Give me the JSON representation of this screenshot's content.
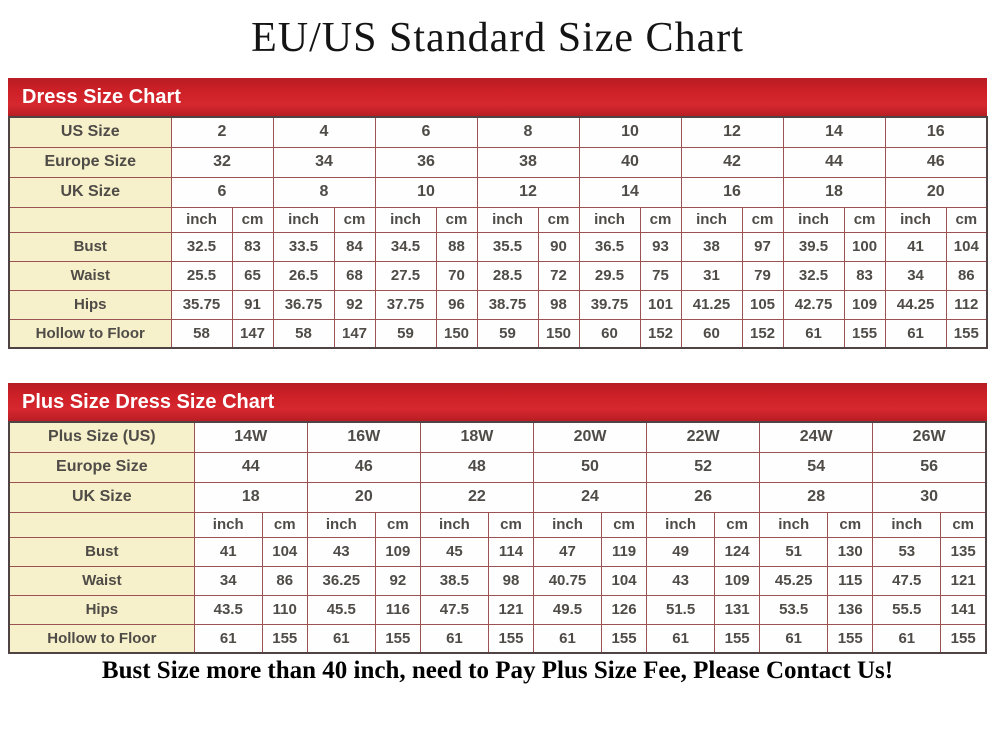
{
  "title": "EU/US Standard Size Chart",
  "footer_note": "Bust Size more than 40 inch, need to Pay Plus Size Fee, Please Contact Us!",
  "units": {
    "inch": "inch",
    "cm": "cm"
  },
  "colors": {
    "header_red": "#ce2027",
    "label_cell_cream": "#f6f1ca",
    "grid_border_maroon": "#9b5252",
    "table_text": "#4f4b47"
  },
  "standard_chart": {
    "header": "Dress Size Chart",
    "size_rows": [
      {
        "label": "US Size",
        "values": [
          "2",
          "4",
          "6",
          "8",
          "10",
          "12",
          "14",
          "16"
        ]
      },
      {
        "label": "Europe Size",
        "values": [
          "32",
          "34",
          "36",
          "38",
          "40",
          "42",
          "44",
          "46"
        ]
      },
      {
        "label": "UK Size",
        "values": [
          "6",
          "8",
          "10",
          "12",
          "14",
          "16",
          "18",
          "20"
        ]
      }
    ],
    "measurement_rows": [
      {
        "label": "Bust",
        "inch": [
          "32.5",
          "33.5",
          "34.5",
          "35.5",
          "36.5",
          "38",
          "39.5",
          "41"
        ],
        "cm": [
          "83",
          "84",
          "88",
          "90",
          "93",
          "97",
          "100",
          "104"
        ]
      },
      {
        "label": "Waist",
        "inch": [
          "25.5",
          "26.5",
          "27.5",
          "28.5",
          "29.5",
          "31",
          "32.5",
          "34"
        ],
        "cm": [
          "65",
          "68",
          "70",
          "72",
          "75",
          "79",
          "83",
          "86"
        ]
      },
      {
        "label": "Hips",
        "inch": [
          "35.75",
          "36.75",
          "37.75",
          "38.75",
          "39.75",
          "41.25",
          "42.75",
          "44.25"
        ],
        "cm": [
          "91",
          "92",
          "96",
          "98",
          "101",
          "105",
          "109",
          "112"
        ]
      },
      {
        "label": "Hollow to Floor",
        "inch": [
          "58",
          "58",
          "59",
          "59",
          "60",
          "60",
          "61",
          "61"
        ],
        "cm": [
          "147",
          "147",
          "150",
          "150",
          "152",
          "152",
          "155",
          "155"
        ]
      }
    ]
  },
  "plus_chart": {
    "header": "Plus Size Dress Size Chart",
    "size_rows": [
      {
        "label": "Plus Size (US)",
        "values": [
          "14W",
          "16W",
          "18W",
          "20W",
          "22W",
          "24W",
          "26W"
        ]
      },
      {
        "label": "Europe Size",
        "values": [
          "44",
          "46",
          "48",
          "50",
          "52",
          "54",
          "56"
        ]
      },
      {
        "label": "UK Size",
        "values": [
          "18",
          "20",
          "22",
          "24",
          "26",
          "28",
          "30"
        ]
      }
    ],
    "measurement_rows": [
      {
        "label": "Bust",
        "inch": [
          "41",
          "43",
          "45",
          "47",
          "49",
          "51",
          "53"
        ],
        "cm": [
          "104",
          "109",
          "114",
          "119",
          "124",
          "130",
          "135"
        ]
      },
      {
        "label": "Waist",
        "inch": [
          "34",
          "36.25",
          "38.5",
          "40.75",
          "43",
          "45.25",
          "47.5"
        ],
        "cm": [
          "86",
          "92",
          "98",
          "104",
          "109",
          "115",
          "121"
        ]
      },
      {
        "label": "Hips",
        "inch": [
          "43.5",
          "45.5",
          "47.5",
          "49.5",
          "51.5",
          "53.5",
          "55.5"
        ],
        "cm": [
          "110",
          "116",
          "121",
          "126",
          "131",
          "136",
          "141"
        ]
      },
      {
        "label": "Hollow to Floor",
        "inch": [
          "61",
          "61",
          "61",
          "61",
          "61",
          "61",
          "61"
        ],
        "cm": [
          "155",
          "155",
          "155",
          "155",
          "155",
          "155",
          "155"
        ]
      }
    ]
  }
}
